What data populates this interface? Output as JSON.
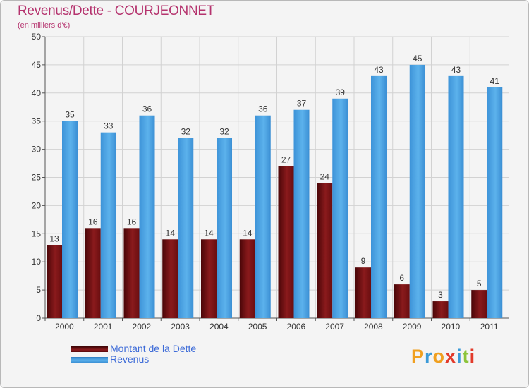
{
  "chart_data": {
    "type": "bar",
    "title": "Revenus/Dette - COURJEONNET",
    "subtitle": "(en milliers d'€)",
    "categories": [
      "2000",
      "2001",
      "2002",
      "2003",
      "2004",
      "2005",
      "2006",
      "2007",
      "2008",
      "2009",
      "2010",
      "2011"
    ],
    "series": [
      {
        "name": "Montant de la Dette",
        "values": [
          13,
          16,
          16,
          14,
          14,
          14,
          27,
          24,
          9,
          6,
          3,
          5
        ],
        "color": "#7a1416"
      },
      {
        "name": "Revenus",
        "values": [
          35,
          33,
          36,
          32,
          32,
          36,
          37,
          39,
          43,
          45,
          43,
          41
        ],
        "color": "#4fa8e6"
      }
    ],
    "ylim": [
      0,
      50
    ],
    "yticks": [
      0,
      5,
      10,
      15,
      20,
      25,
      30,
      35,
      40,
      45,
      50
    ],
    "grid": true,
    "data_labels": true,
    "legend": "bottom-left"
  },
  "logo": {
    "letters": [
      "P",
      "r",
      "o",
      "x",
      "i",
      "t",
      "i"
    ]
  }
}
